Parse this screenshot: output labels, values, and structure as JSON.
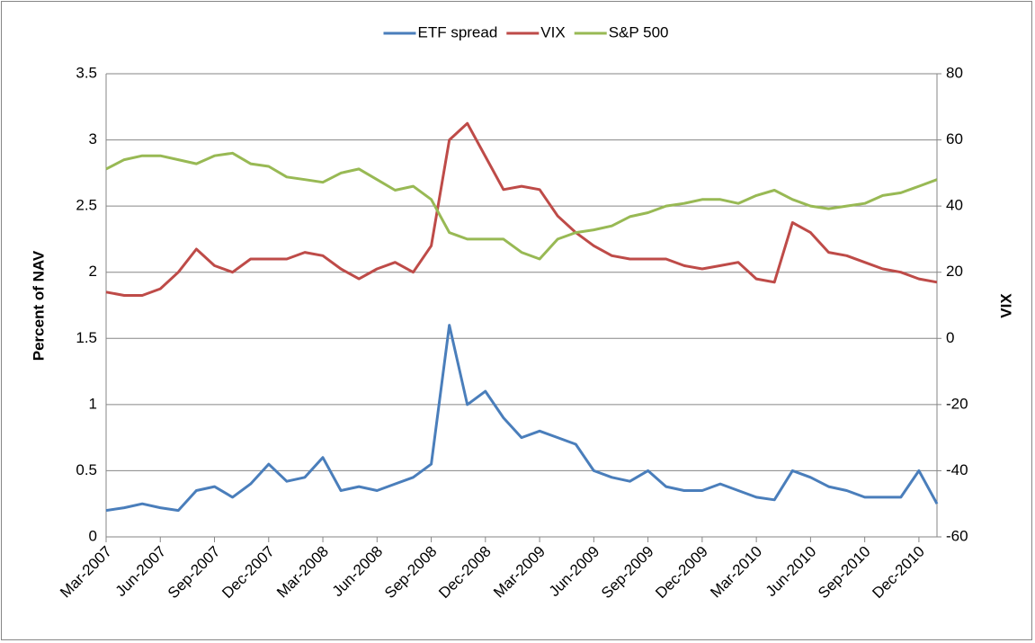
{
  "chart_data": {
    "type": "line",
    "y_label": "Percent of NAV",
    "y2_label": "VIX",
    "categories": [
      "Mar-2007",
      null,
      null,
      "Jun-2007",
      null,
      null,
      "Sep-2007",
      null,
      null,
      "Dec-2007",
      null,
      null,
      "Mar-2008",
      null,
      null,
      "Jun-2008",
      null,
      null,
      "Sep-2008",
      null,
      null,
      "Dec-2008",
      null,
      null,
      "Mar-2009",
      null,
      null,
      "Jun-2009",
      null,
      null,
      "Sep-2009",
      null,
      null,
      "Dec-2009",
      null,
      null,
      "Mar-2010",
      null,
      null,
      "Jun-2010",
      null,
      null,
      "Sep-2010",
      null,
      null,
      "Dec-2010",
      null
    ],
    "series": [
      {
        "name": "ETF spread",
        "color": "#4a7ebb",
        "axis": "y",
        "values": [
          0.2,
          0.22,
          0.25,
          0.22,
          0.2,
          0.35,
          0.38,
          0.3,
          0.4,
          0.55,
          0.42,
          0.45,
          0.6,
          0.35,
          0.38,
          0.35,
          0.4,
          0.45,
          0.55,
          1.6,
          1.0,
          1.1,
          0.9,
          0.75,
          0.8,
          0.75,
          0.7,
          0.5,
          0.45,
          0.42,
          0.5,
          0.38,
          0.35,
          0.35,
          0.4,
          0.35,
          0.3,
          0.28,
          0.5,
          0.45,
          0.38,
          0.35,
          0.3,
          0.3,
          0.3,
          0.5,
          0.25
        ]
      },
      {
        "name": "VIX",
        "color": "#be4b48",
        "axis": "y2",
        "values": [
          14,
          13,
          13,
          15,
          20,
          27,
          22,
          20,
          24,
          24,
          24,
          26,
          25,
          21,
          18,
          21,
          23,
          20,
          28,
          60,
          65,
          55,
          45,
          46,
          45,
          37,
          32,
          28,
          25,
          24,
          24,
          24,
          22,
          21,
          22,
          23,
          18,
          17,
          35,
          32,
          26,
          25,
          23,
          21,
          20,
          18,
          17
        ]
      },
      {
        "name": "S&P 500",
        "color": "#98b954",
        "axis": "y",
        "values": [
          2.78,
          2.85,
          2.88,
          2.88,
          2.85,
          2.82,
          2.88,
          2.9,
          2.82,
          2.8,
          2.72,
          2.7,
          2.68,
          2.75,
          2.78,
          2.7,
          2.62,
          2.65,
          2.55,
          2.3,
          2.25,
          2.25,
          2.25,
          2.15,
          2.1,
          2.25,
          2.3,
          2.32,
          2.35,
          2.42,
          2.45,
          2.5,
          2.52,
          2.55,
          2.55,
          2.52,
          2.58,
          2.62,
          2.55,
          2.5,
          2.48,
          2.5,
          2.52,
          2.58,
          2.6,
          2.65,
          2.7
        ]
      }
    ],
    "ylim": [
      0,
      3.5
    ],
    "yticks": [
      0,
      0.5,
      1,
      1.5,
      2,
      2.5,
      3,
      3.5
    ],
    "y2lim": [
      -60,
      80
    ],
    "y2ticks": [
      -60,
      -40,
      -20,
      0,
      20,
      40,
      60,
      80
    ],
    "grid": true,
    "legend": "top"
  }
}
